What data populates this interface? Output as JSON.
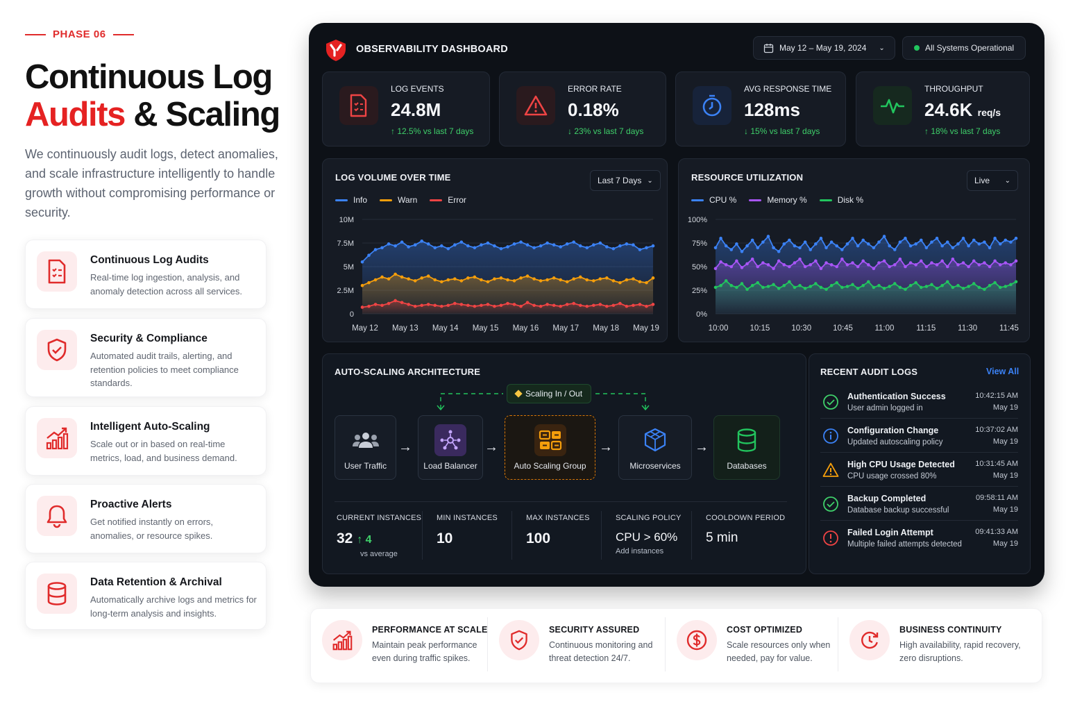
{
  "left": {
    "phase": "PHASE 06",
    "title_line1": "Continuous Log",
    "title_red": "Audits",
    "title_rest": "& Scaling",
    "lead": "We continuously audit logs, detect anomalies, and scale infrastructure intelligently to handle growth without compromising performance or security.",
    "features": [
      {
        "title": "Continuous Log Audits",
        "desc": "Real-time log ingestion, analysis, and anomaly detection across all services.",
        "icon": "log-audit-icon"
      },
      {
        "title": "Security & Compliance",
        "desc": "Automated audit trails, alerting, and retention policies to meet compliance standards.",
        "icon": "shield-check-icon"
      },
      {
        "title": "Intelligent Auto-Scaling",
        "desc": "Scale out or in based on real-time metrics, load, and business demand.",
        "icon": "growth-chart-icon"
      },
      {
        "title": "Proactive Alerts",
        "desc": "Get notified instantly on errors, anomalies, or resource spikes.",
        "icon": "bell-icon"
      },
      {
        "title": "Data Retention & Archival",
        "desc": "Automatically archive logs and metrics for long-term analysis and insights.",
        "icon": "database-icon"
      }
    ]
  },
  "dashboard": {
    "title": "OBSERVABILITY DASHBOARD",
    "date_range": "May 12 – May 19, 2024",
    "status": "All Systems Operational",
    "kpis": [
      {
        "label": "LOG EVENTS",
        "value": "24.8M",
        "unit": "",
        "delta": "↑ 12.5% vs last 7 days",
        "icon": "document-icon"
      },
      {
        "label": "ERROR RATE",
        "value": "0.18%",
        "unit": "",
        "delta": "↓ 23% vs last 7 days",
        "icon": "warning-icon"
      },
      {
        "label": "AVG RESPONSE TIME",
        "value": "128ms",
        "unit": "",
        "delta": "↓ 15% vs last 7 days",
        "icon": "timer-icon"
      },
      {
        "label": "THROUGHPUT",
        "value": "24.6K",
        "unit": "req/s",
        "delta": "↑ 18% vs last 7 days",
        "icon": "pulse-icon"
      }
    ],
    "log_volume": {
      "title": "LOG VOLUME OVER TIME",
      "range_select": "Last 7 Days",
      "legend": [
        "Info",
        "Warn",
        "Error"
      ]
    },
    "resource": {
      "title": "RESOURCE UTILIZATION",
      "range_select": "Live",
      "legend": [
        "CPU %",
        "Memory %",
        "Disk %"
      ]
    },
    "architecture": {
      "title": "AUTO-SCALING ARCHITECTURE",
      "scaling_tag": "Scaling In / Out",
      "nodes": [
        "User Traffic",
        "Load Balancer",
        "Auto Scaling Group",
        "Microservices",
        "Databases"
      ],
      "stats": [
        {
          "label": "CURRENT INSTANCES",
          "value": "32",
          "delta": "↑ 4",
          "sub": "vs average"
        },
        {
          "label": "MIN INSTANCES",
          "value": "10",
          "sub": ""
        },
        {
          "label": "MAX INSTANCES",
          "value": "100",
          "sub": ""
        },
        {
          "label": "SCALING POLICY",
          "value": "CPU > 60%",
          "sub": "Add instances"
        },
        {
          "label": "COOLDOWN PERIOD",
          "value": "5 min",
          "sub": ""
        }
      ]
    },
    "audit_logs": {
      "title": "RECENT AUDIT LOGS",
      "view_all": "View All",
      "items": [
        {
          "title": "Authentication Success",
          "sub": "User admin logged in",
          "time": "10:42:15 AM",
          "date": "May 19",
          "icon": "check-circle-icon",
          "color": "#3fd06a"
        },
        {
          "title": "Configuration Change",
          "sub": "Updated autoscaling policy",
          "time": "10:37:02 AM",
          "date": "May 19",
          "icon": "info-circle-icon",
          "color": "#3b82f6"
        },
        {
          "title": "High CPU Usage Detected",
          "sub": "CPU usage crossed 80%",
          "time": "10:31:45 AM",
          "date": "May 19",
          "icon": "warning-icon",
          "color": "#f59e0b"
        },
        {
          "title": "Backup Completed",
          "sub": "Database backup successful",
          "time": "09:58:11 AM",
          "date": "May 19",
          "icon": "check-circle-icon",
          "color": "#3fd06a"
        },
        {
          "title": "Failed Login Attempt",
          "sub": "Multiple failed attempts detected",
          "time": "09:41:33 AM",
          "date": "May 19",
          "icon": "alert-circle-icon",
          "color": "#ef4444"
        }
      ]
    }
  },
  "chart_data": [
    {
      "type": "line",
      "title": "LOG VOLUME OVER TIME",
      "x_ticks": [
        "May 12",
        "May 13",
        "May 14",
        "May 15",
        "May 16",
        "May 17",
        "May 18",
        "May 19"
      ],
      "y_ticks": [
        "0",
        "2.5M",
        "5M",
        "7.5M",
        "10M"
      ],
      "ylim": [
        0,
        10000000
      ],
      "series": [
        {
          "name": "Info",
          "color": "#3b82f6",
          "values": [
            5.5,
            6.2,
            6.8,
            7.0,
            7.4,
            7.2,
            7.6,
            7.1,
            7.3,
            7.7,
            7.4,
            7.0,
            7.2,
            6.9,
            7.3,
            7.6,
            7.2,
            7.0,
            7.3,
            7.5,
            7.2,
            6.9,
            7.1,
            7.4,
            7.6,
            7.3,
            7.0,
            7.2,
            7.5,
            7.3,
            7.1,
            7.4,
            7.6,
            7.2,
            7.0,
            7.3,
            7.5,
            7.1,
            6.9,
            7.2,
            7.4,
            7.3,
            6.8,
            7.0,
            7.2
          ]
        },
        {
          "name": "Warn",
          "color": "#f59e0b",
          "values": [
            3.0,
            3.3,
            3.6,
            3.9,
            3.7,
            4.2,
            3.9,
            3.7,
            3.5,
            3.8,
            4.0,
            3.6,
            3.4,
            3.6,
            3.7,
            3.5,
            3.8,
            3.9,
            3.6,
            3.4,
            3.7,
            3.8,
            3.6,
            3.5,
            3.8,
            4.0,
            3.7,
            3.5,
            3.6,
            3.8,
            3.6,
            3.4,
            3.7,
            3.9,
            3.6,
            3.5,
            3.7,
            3.8,
            3.5,
            3.3,
            3.6,
            3.7,
            3.4,
            3.3,
            3.8
          ]
        },
        {
          "name": "Error",
          "color": "#ef4444",
          "values": [
            0.7,
            0.8,
            1.0,
            0.9,
            1.1,
            1.4,
            1.2,
            1.0,
            0.8,
            0.9,
            1.0,
            0.9,
            0.8,
            0.9,
            1.1,
            1.0,
            0.9,
            0.8,
            0.9,
            1.0,
            0.8,
            0.9,
            1.1,
            1.0,
            0.8,
            1.2,
            0.9,
            0.8,
            1.0,
            0.9,
            0.8,
            1.0,
            1.1,
            0.9,
            0.8,
            0.9,
            1.0,
            0.8,
            0.9,
            1.1,
            0.8,
            0.9,
            1.0,
            0.8,
            1.0
          ]
        }
      ]
    },
    {
      "type": "line",
      "title": "RESOURCE UTILIZATION",
      "x_ticks": [
        "10:00",
        "10:15",
        "10:30",
        "10:45",
        "11:00",
        "11:15",
        "11:30",
        "11:45"
      ],
      "y_ticks": [
        "0%",
        "25%",
        "50%",
        "75%",
        "100%"
      ],
      "ylim": [
        0,
        100
      ],
      "series": [
        {
          "name": "CPU %",
          "color": "#3b82f6",
          "values": [
            70,
            80,
            72,
            68,
            74,
            66,
            72,
            78,
            70,
            76,
            82,
            70,
            66,
            74,
            78,
            72,
            70,
            76,
            68,
            74,
            80,
            70,
            76,
            72,
            68,
            74,
            80,
            72,
            78,
            74,
            70,
            76,
            82,
            72,
            68,
            76,
            80,
            72,
            74,
            78,
            70,
            76,
            80,
            72,
            76,
            70,
            74,
            80,
            72,
            78,
            74,
            76,
            70,
            80,
            74,
            78,
            76,
            80
          ]
        },
        {
          "name": "Memory %",
          "color": "#a855f7",
          "values": [
            48,
            55,
            52,
            50,
            56,
            49,
            53,
            58,
            50,
            54,
            52,
            48,
            56,
            52,
            50,
            54,
            58,
            50,
            52,
            56,
            48,
            54,
            52,
            50,
            58,
            52,
            54,
            50,
            56,
            52,
            48,
            54,
            56,
            50,
            52,
            58,
            50,
            54,
            52,
            56,
            50,
            54,
            52,
            56,
            50,
            58,
            52,
            54,
            50,
            56,
            52,
            54,
            50,
            56,
            52,
            54,
            52,
            56
          ]
        },
        {
          "name": "Disk %",
          "color": "#22c55e",
          "values": [
            28,
            30,
            35,
            30,
            28,
            32,
            26,
            30,
            33,
            28,
            29,
            31,
            27,
            30,
            34,
            28,
            30,
            27,
            29,
            32,
            28,
            26,
            30,
            33,
            28,
            29,
            31,
            27,
            30,
            34,
            28,
            30,
            27,
            29,
            32,
            28,
            26,
            30,
            33,
            28,
            29,
            31,
            27,
            30,
            34,
            28,
            30,
            27,
            29,
            32,
            28,
            26,
            30,
            33,
            28,
            29,
            31,
            34
          ]
        }
      ]
    }
  ],
  "bottom": [
    {
      "title": "PERFORMANCE AT SCALE",
      "desc": "Maintain peak performance even during traffic spikes.",
      "icon": "growth-chart-icon"
    },
    {
      "title": "SECURITY ASSURED",
      "desc": "Continuous monitoring and threat detection 24/7.",
      "icon": "shield-check-icon"
    },
    {
      "title": "COST OPTIMIZED",
      "desc": "Scale resources only when needed, pay for value.",
      "icon": "dollar-icon"
    },
    {
      "title": "BUSINESS CONTINUITY",
      "desc": "High availability, rapid recovery, zero disruptions.",
      "icon": "recovery-icon"
    }
  ]
}
